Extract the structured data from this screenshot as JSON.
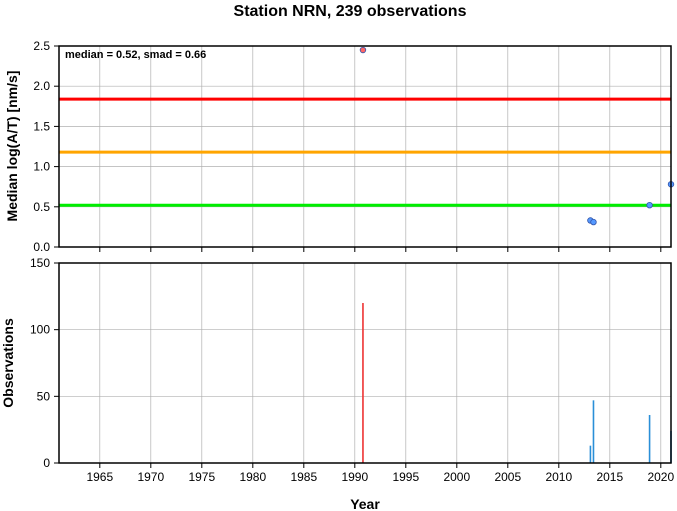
{
  "chart_data": [
    {
      "type": "scatter",
      "title": "Station NRN, 239 observations",
      "xlabel": "",
      "ylabel": "Median log(A/T) [nm/s]",
      "annotation": "median = 0.52, smad = 0.66",
      "xlim": [
        1961,
        2021
      ],
      "ylim": [
        0,
        2.5
      ],
      "yticks": [
        "0.0",
        "0.5",
        "1.0",
        "1.5",
        "2.0",
        "2.5"
      ],
      "grid": true,
      "reference_lines": [
        {
          "y": 0.52,
          "color": "#00ee00"
        },
        {
          "y": 1.18,
          "color": "#ffa500"
        },
        {
          "y": 1.84,
          "color": "#ff0000"
        }
      ],
      "series": [
        {
          "color": "#5599ff",
          "points": [
            {
              "x": 2013.1,
              "y": 0.33
            },
            {
              "x": 2013.4,
              "y": 0.31
            },
            {
              "x": 2018.9,
              "y": 0.52
            },
            {
              "x": 2021.0,
              "y": 0.78
            }
          ]
        },
        {
          "color": "#ff6666",
          "points": [
            {
              "x": 1990.8,
              "y": 2.45
            }
          ]
        }
      ]
    },
    {
      "type": "bar",
      "title": "",
      "xlabel": "Year",
      "ylabel": "Observations",
      "xlim": [
        1961,
        2021
      ],
      "ylim": [
        0,
        150
      ],
      "yticks": [
        "0",
        "50",
        "100",
        "150"
      ],
      "xticks": [
        "1965",
        "1970",
        "1975",
        "1980",
        "1985",
        "1990",
        "1995",
        "2000",
        "2005",
        "2010",
        "2015",
        "2020"
      ],
      "grid": true,
      "series": [
        {
          "color": "#ee3333",
          "points": [
            {
              "x": 1990.8,
              "y": 120
            }
          ]
        },
        {
          "color": "#2a8fd8",
          "points": [
            {
              "x": 2013.1,
              "y": 13
            },
            {
              "x": 2013.4,
              "y": 47
            },
            {
              "x": 2018.9,
              "y": 36
            },
            {
              "x": 2021.0,
              "y": 24
            }
          ]
        }
      ]
    }
  ]
}
